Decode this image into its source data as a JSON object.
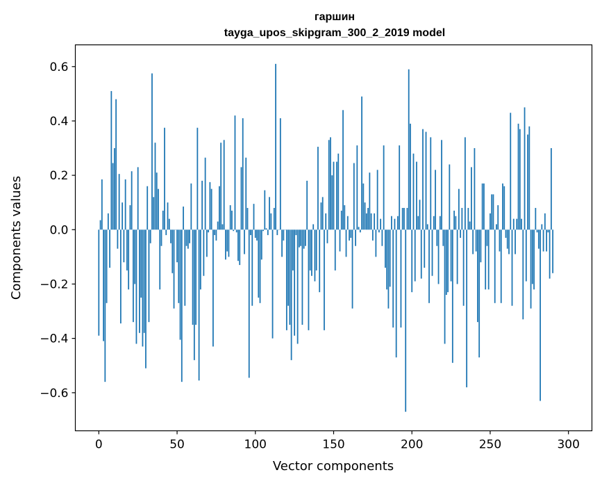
{
  "chart_data": {
    "type": "bar",
    "title_line1": "гаршин",
    "title_line2": "tayga_upos_skipgram_300_2_2019 model",
    "xlabel": "Vector components",
    "ylabel": "Components values",
    "xlim": [
      -15,
      315
    ],
    "ylim": [
      -0.74,
      0.68
    ],
    "xticks": [
      0,
      50,
      100,
      150,
      200,
      250,
      300
    ],
    "xtick_labels": [
      "0",
      "50",
      "100",
      "150",
      "200",
      "250",
      "300"
    ],
    "yticks": [
      -0.6,
      -0.4,
      -0.2,
      0.0,
      0.2,
      0.4,
      0.6
    ],
    "ytick_labels": [
      "−0.6",
      "−0.4",
      "−0.2",
      "0.0",
      "0.2",
      "0.4",
      "0.6"
    ],
    "bar_color": "#1f77b4",
    "values": [
      -0.39,
      0.035,
      0.185,
      -0.41,
      -0.56,
      -0.27,
      0.06,
      -0.14,
      0.51,
      0.245,
      0.3,
      0.48,
      -0.07,
      0.205,
      -0.345,
      0.1,
      -0.12,
      0.185,
      -0.15,
      -0.22,
      0.09,
      0.215,
      -0.34,
      -0.2,
      -0.42,
      0.23,
      -0.38,
      -0.25,
      -0.43,
      -0.38,
      -0.51,
      0.16,
      -0.34,
      -0.05,
      0.575,
      0.12,
      0.32,
      0.21,
      0.15,
      -0.22,
      -0.06,
      0.07,
      0.375,
      -0.02,
      0.1,
      0.04,
      -0.05,
      -0.16,
      -0.29,
      0.0,
      -0.12,
      -0.27,
      -0.405,
      -0.56,
      0.085,
      -0.28,
      -0.06,
      -0.07,
      -0.05,
      0.17,
      -0.35,
      -0.48,
      -0.35,
      0.375,
      -0.555,
      -0.22,
      0.18,
      -0.17,
      0.265,
      -0.1,
      -0.01,
      0.175,
      0.15,
      -0.43,
      -0.02,
      -0.04,
      0.03,
      0.16,
      0.32,
      0.02,
      0.33,
      -0.11,
      -0.08,
      -0.1,
      0.09,
      0.07,
      -0.005,
      0.42,
      -0.01,
      -0.115,
      -0.13,
      0.23,
      0.41,
      -0.09,
      0.265,
      0.08,
      -0.545,
      -0.02,
      -0.28,
      0.095,
      -0.03,
      -0.04,
      -0.25,
      -0.27,
      -0.11,
      -0.005,
      0.145,
      0.005,
      -0.02,
      0.12,
      0.06,
      -0.4,
      0.08,
      0.61,
      -0.02,
      0.0,
      0.41,
      -0.1,
      -0.04,
      0.0,
      -0.37,
      -0.28,
      -0.35,
      -0.48,
      -0.15,
      -0.39,
      -0.02,
      -0.42,
      -0.065,
      -0.06,
      -0.35,
      -0.07,
      -0.06,
      0.18,
      -0.37,
      -0.15,
      -0.17,
      0.02,
      -0.19,
      -0.15,
      0.305,
      -0.23,
      0.1,
      0.12,
      -0.37,
      0.06,
      -0.05,
      0.33,
      0.34,
      0.2,
      0.25,
      -0.15,
      0.25,
      0.28,
      -0.08,
      0.07,
      0.44,
      0.09,
      -0.1,
      0.05,
      -0.04,
      -0.03,
      -0.29,
      0.245,
      -0.06,
      0.31,
      0.01,
      -0.01,
      0.49,
      0.17,
      0.1,
      0.06,
      0.08,
      0.21,
      0.06,
      -0.04,
      0.06,
      -0.1,
      0.22,
      -0.01,
      0.04,
      -0.06,
      0.31,
      -0.14,
      -0.22,
      -0.29,
      -0.21,
      0.05,
      -0.36,
      0.04,
      -0.47,
      0.05,
      0.31,
      -0.36,
      0.08,
      0.08,
      -0.67,
      0.08,
      0.59,
      0.39,
      -0.23,
      0.28,
      -0.19,
      0.25,
      0.05,
      0.11,
      -0.18,
      0.37,
      -0.14,
      0.36,
      0.02,
      -0.27,
      0.34,
      -0.17,
      0.05,
      0.22,
      -0.06,
      -0.2,
      0.05,
      0.33,
      -0.06,
      -0.42,
      -0.24,
      -0.23,
      0.24,
      -0.19,
      -0.49,
      0.07,
      0.05,
      -0.2,
      0.15,
      -0.03,
      0.08,
      -0.28,
      0.34,
      -0.58,
      0.08,
      0.03,
      0.23,
      -0.09,
      0.3,
      -0.08,
      -0.34,
      -0.47,
      -0.12,
      0.17,
      0.17,
      -0.22,
      -0.06,
      -0.22,
      0.06,
      0.13,
      0.13,
      -0.27,
      0.02,
      0.09,
      -0.08,
      -0.27,
      0.17,
      0.16,
      -0.03,
      -0.07,
      -0.09,
      0.43,
      -0.28,
      0.04,
      -0.09,
      0.04,
      0.39,
      0.37,
      0.04,
      -0.33,
      0.45,
      -0.19,
      0.35,
      0.38,
      -0.29,
      -0.2,
      -0.22,
      0.08,
      -0.01,
      -0.07,
      -0.63,
      0.02,
      -0.08,
      0.06,
      -0.08,
      -0.01,
      -0.18,
      0.3,
      -0.16
    ]
  }
}
